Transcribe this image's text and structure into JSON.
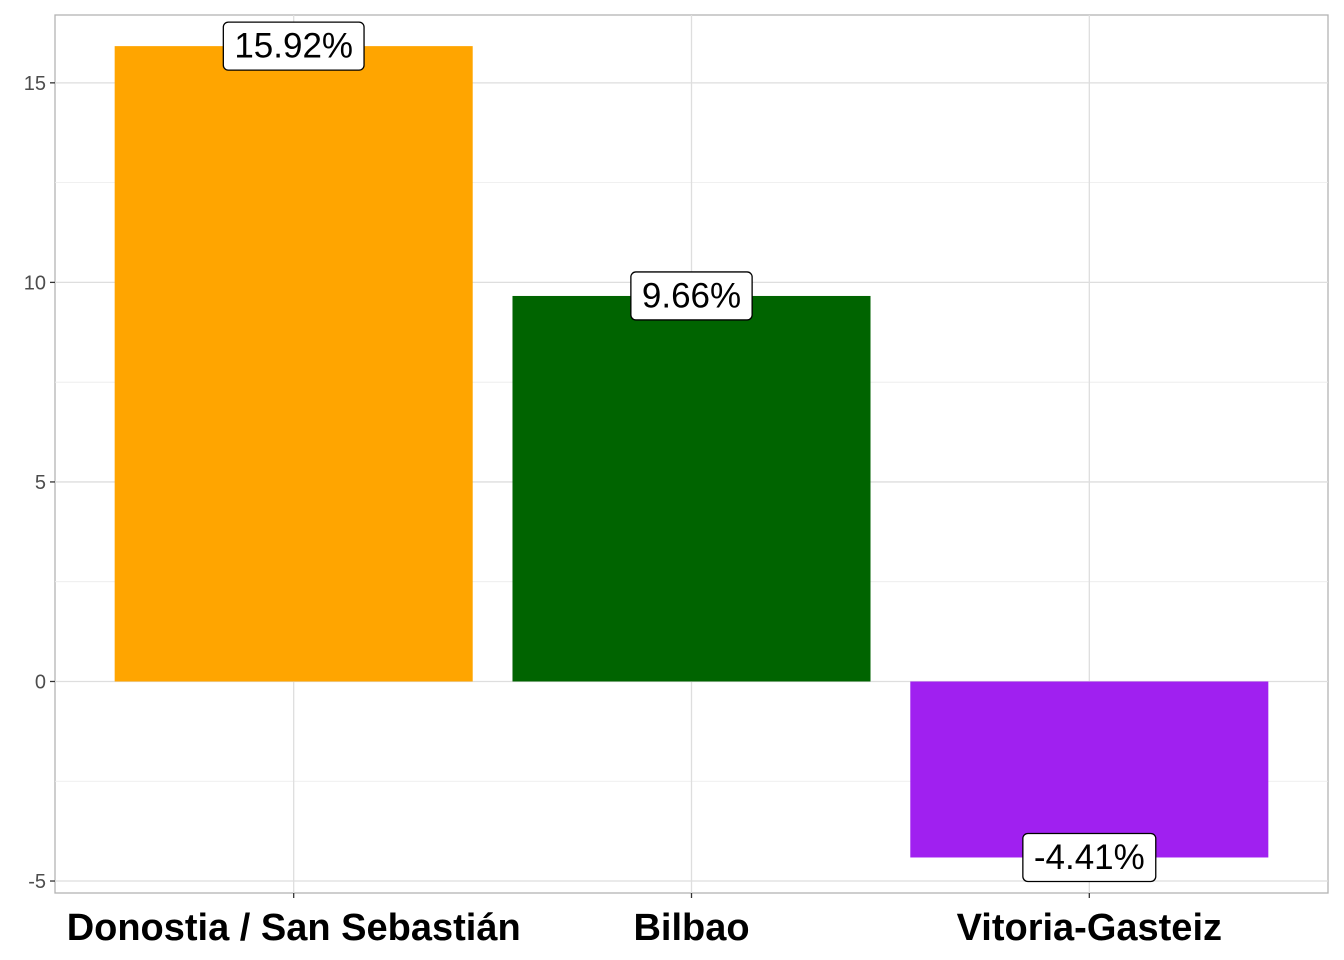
{
  "chart_data": {
    "type": "bar",
    "title": "",
    "xlabel": "",
    "ylabel": "",
    "categories": [
      "Donostia / San Sebastián",
      "Bilbao",
      "Vitoria-Gasteiz"
    ],
    "values": [
      15.92,
      9.66,
      -4.41
    ],
    "data_labels": [
      "15.92%",
      "9.66%",
      "-4.41%"
    ],
    "colors": [
      "#FFA500",
      "#006400",
      "#A020F0"
    ],
    "ylim": [
      -5.3,
      16.7
    ],
    "y_ticks": [
      -5,
      0,
      5,
      10,
      15
    ],
    "y_tick_labels": [
      "-5",
      "0",
      "5",
      "10",
      "15"
    ],
    "grid": true,
    "legend": "none"
  }
}
